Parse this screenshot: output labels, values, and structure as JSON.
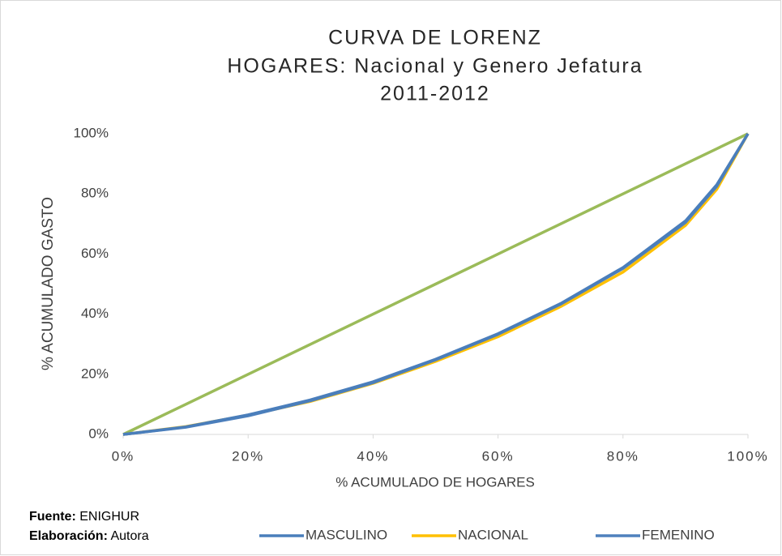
{
  "chart_data": {
    "type": "line",
    "title": [
      "CURVA DE LORENZ",
      "HOGARES: Nacional y Genero Jefatura",
      "2011-2012"
    ],
    "xlabel": "% ACUMULADO DE HOGARES",
    "ylabel": "% ACUMULADO GASTO",
    "x": [
      0,
      10,
      20,
      30,
      40,
      50,
      60,
      70,
      80,
      90,
      95,
      100
    ],
    "series": [
      {
        "color": "#9bbb59",
        "values": [
          0,
          10,
          20,
          30,
          40,
          50,
          60,
          70,
          80,
          90,
          95,
          100
        ]
      },
      {
        "name": "NACIONAL",
        "color": "#ffc000",
        "values": [
          0,
          2.6,
          6.4,
          11,
          17,
          24.3,
          32.5,
          42.5,
          54,
          69.5,
          81.5,
          100
        ]
      },
      {
        "name": "FEMENINO",
        "color": "#4f81bd",
        "values": [
          0,
          2.4,
          6.2,
          11.2,
          17.2,
          24.8,
          33.3,
          43.3,
          55.2,
          70.5,
          82.5,
          100
        ]
      },
      {
        "name": "MASCULINO",
        "color": "#4a7ebb",
        "values": [
          0,
          2.5,
          6.5,
          11.5,
          17.5,
          25,
          33.5,
          43.5,
          55.5,
          71,
          83,
          100
        ]
      }
    ],
    "legend_order": [
      3,
      1,
      2
    ],
    "xlim": [
      0,
      100
    ],
    "ylim": [
      0,
      100
    ],
    "xticks": [
      {
        "value": 0,
        "label": "0%"
      },
      {
        "value": 20,
        "label": "20%"
      },
      {
        "value": 40,
        "label": "40%"
      },
      {
        "value": 60,
        "label": "60%"
      },
      {
        "value": 80,
        "label": "80%"
      },
      {
        "value": 100,
        "label": "100%"
      }
    ],
    "yticks": [
      {
        "value": 0,
        "label": "0%"
      },
      {
        "value": 20,
        "label": "20%"
      },
      {
        "value": 40,
        "label": "40%"
      },
      {
        "value": 60,
        "label": "60%"
      },
      {
        "value": 80,
        "label": "80%"
      },
      {
        "value": 100,
        "label": "100%"
      }
    ],
    "grid": false,
    "legend": "bottom",
    "source_label": "Fuente:",
    "source": "ENIGHUR",
    "credit_label": "Elaboración:",
    "credit": "Autora"
  }
}
